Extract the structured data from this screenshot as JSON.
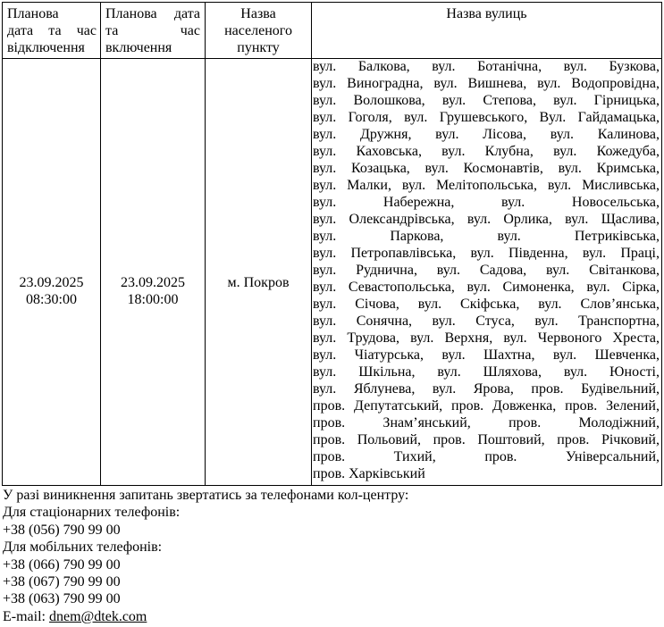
{
  "table": {
    "headers": [
      {
        "lines": [
          "Планова",
          "дата та час",
          "відключення"
        ]
      },
      {
        "lines": [
          "Планова дата",
          "та час",
          "включення"
        ]
      },
      {
        "lines": [
          "Назва",
          "населеного",
          "пункту"
        ]
      },
      {
        "lines": [
          "Назва вулиць"
        ]
      }
    ],
    "row": {
      "off": {
        "date": "23.09.2025",
        "time": "08:30:00"
      },
      "on": {
        "date": "23.09.2025",
        "time": "18:00:00"
      },
      "settlement": "м. Покров",
      "streets_lines": [
        "вул. Балкова, вул. Ботанічна, вул. Бузкова,",
        "вул. Виноградна, вул. Вишнева, вул. Водопровідна,",
        "вул. Волошкова, вул. Степова, вул. Гірницька,",
        "вул. Гоголя, вул. Грушевського, Вул. Гайдамацька,",
        "вул. Дружня, вул. Лісова, вул. Калинова,",
        "вул. Каховська, вул. Клубна, вул. Кожедуба,",
        "вул. Козацька, вул. Космонавтів, вул. Кримська,",
        "вул. Малки, вул. Мелітопольська, вул. Мисливська,",
        "вул. Набережна, вул. Новосельська,",
        "вул. Олександрівська, вул. Орлика, вул. Щаслива,",
        "вул. Паркова, вул. Петриківська,",
        "вул. Петропавлівська, вул. Південна, вул. Праці,",
        "вул. Руднична, вул. Садова, вул. Світанкова,",
        "вул. Севастопольська, вул. Симоненка, вул. Сірка,",
        "вул. Січова, вул. Скіфська, вул. Слов’янська,",
        "вул. Сонячна, вул. Стуса, вул. Транспортна,",
        "вул. Трудова, вул. Верхня, вул. Червоного Хреста,",
        "вул. Чіатурська, вул. Шахтна, вул. Шевченка,",
        "вул. Шкільна, вул. Шляхова, вул. Юності,",
        "вул. Яблунева, вул. Ярова, пров. Будівельний,",
        "пров. Депутатський, пров. Довженка, пров. Зелений,",
        "пров. Знам’янський, пров. Молодіжний,",
        "пров. Польовий, пров. Поштовий, пров. Річковий,",
        "пров. Тихий, пров. Універсальний,",
        "пров. Харківський"
      ]
    }
  },
  "footer": {
    "intro": "У разі виникнення запитань звертатись за телефонами кол-центру:",
    "landline_label": "Для стаціонарних телефонів:",
    "landline_phone": "+38 (056) 790 99 00",
    "mobile_label": "Для мобільних телефонів:",
    "mobile_phones": [
      "+38 (066) 790 99 00",
      "+38 (067) 790 99 00",
      "+38 (063) 790 99 00"
    ],
    "email_label": "E-mail: ",
    "email": "dnem@dtek.com"
  }
}
